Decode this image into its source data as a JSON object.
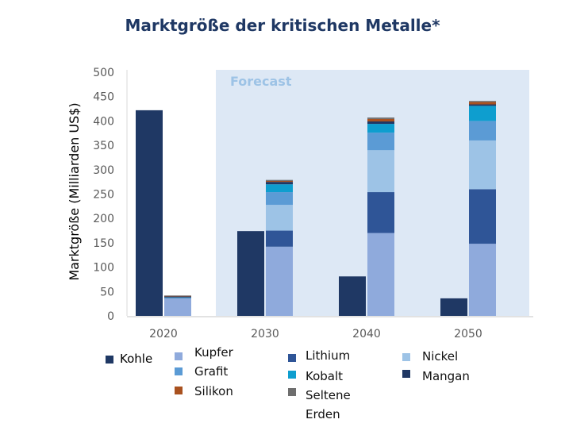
{
  "chart_data": {
    "type": "bar",
    "stacked": true,
    "title": "Marktgröße der kritischen Metalle*",
    "xlabel": "",
    "ylabel": "Marktgröße (Milliarden US$)",
    "ylim": [
      0,
      500
    ],
    "yticks": [
      0,
      50,
      100,
      150,
      200,
      250,
      300,
      350,
      400,
      450,
      500
    ],
    "grid": false,
    "legend_position": "bottom",
    "annotation": "Forecast",
    "forecast_range": [
      "2030",
      "2050"
    ],
    "categories": [
      "2020",
      "2030",
      "2040",
      "2050"
    ],
    "series": [
      {
        "name": "Kohle",
        "stack": "coal",
        "color": "#1f3864",
        "values": [
          422,
          174,
          81,
          36
        ]
      },
      {
        "name": "Kupfer",
        "stack": "metals",
        "color": "#8faadc",
        "values": [
          36,
          142,
          170,
          148
        ]
      },
      {
        "name": "Lithium",
        "stack": "metals",
        "color": "#2f5597",
        "values": [
          1,
          33,
          84,
          112
        ]
      },
      {
        "name": "Nickel",
        "stack": "metals",
        "color": "#9dc3e6",
        "values": [
          0,
          53,
          86,
          100
        ]
      },
      {
        "name": "Grafit",
        "stack": "metals",
        "color": "#5b9bd5",
        "values": [
          0,
          26,
          36,
          40
        ]
      },
      {
        "name": "Kobalt",
        "stack": "metals",
        "color": "#0e9ecf",
        "values": [
          1,
          16,
          18,
          31
        ]
      },
      {
        "name": "Mangan",
        "stack": "metals",
        "color": "#203864",
        "values": [
          2,
          5,
          5,
          3
        ]
      },
      {
        "name": "Silikon",
        "stack": "metals",
        "color": "#a9511f",
        "values": [
          1,
          2,
          5,
          5
        ]
      },
      {
        "name": "Seltene Erden",
        "stack": "metals",
        "color": "#6e6e6e",
        "values": [
          1,
          2,
          3,
          2
        ]
      }
    ]
  },
  "legend": [
    {
      "label": "Kohle",
      "color": "#1f3864"
    },
    {
      "label": "Kupfer",
      "color": "#8faadc"
    },
    {
      "label": "Grafit",
      "color": "#5b9bd5"
    },
    {
      "label": "Silikon",
      "color": "#a9511f"
    },
    {
      "label": "Lithium",
      "color": "#2f5597"
    },
    {
      "label": "Kobalt",
      "color": "#0e9ecf"
    },
    {
      "label": "Seltene",
      "label2": "Erden",
      "color": "#6e6e6e"
    },
    {
      "label": "Nickel",
      "color": "#9dc3e6"
    },
    {
      "label": "Mangan",
      "color": "#203864"
    }
  ],
  "colors": {
    "title": "#1f3864",
    "forecast_bg": "#dde8f5",
    "forecast_text": "#9dc3e6",
    "axis": "#d9d9d9",
    "tick_text": "#595959"
  }
}
